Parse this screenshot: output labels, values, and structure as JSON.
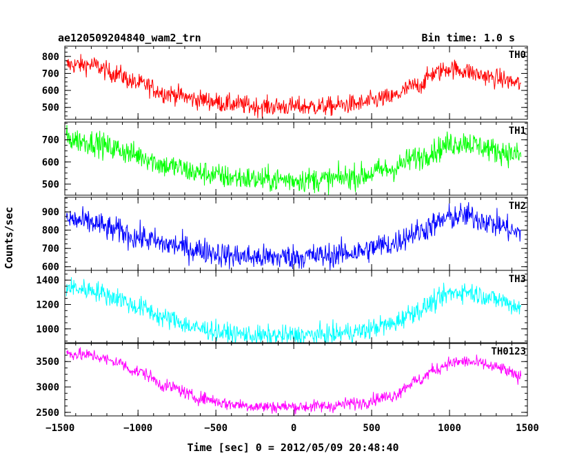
{
  "header": {
    "title": "ae120509204840_wam2_trn",
    "bin_time": "Bin time: 1.0 s"
  },
  "chart_data": {
    "type": "line",
    "xlabel": "Time [sec] 0 = 2012/05/09 20:48:40",
    "ylabel": "Counts/sec",
    "xlim": [
      -1470,
      1500
    ],
    "xticks": [
      -1500,
      -1000,
      -500,
      0,
      500,
      1000,
      1500
    ],
    "xtick_labels": [
      "−1500",
      "−1000",
      "−500",
      "0",
      "500",
      "1000",
      "1500"
    ],
    "x_data_range": [
      -1460,
      1460
    ],
    "grid": false,
    "panels": [
      {
        "name": "TH0",
        "color": "#ff0000",
        "ylim": [
          430,
          860
        ],
        "yticks": [
          500,
          600,
          700,
          800
        ],
        "x": [
          -1460,
          -1300,
          -1150,
          -1000,
          -800,
          -600,
          -400,
          -200,
          0,
          200,
          400,
          600,
          800,
          900,
          1000,
          1100,
          1200,
          1300,
          1460
        ],
        "values": [
          750,
          750,
          700,
          640,
          580,
          545,
          520,
          505,
          505,
          505,
          520,
          555,
          630,
          700,
          730,
          715,
          690,
          670,
          640
        ],
        "noise": 40
      },
      {
        "name": "TH1",
        "color": "#00ff00",
        "ylim": [
          450,
          780
        ],
        "yticks": [
          500,
          600,
          700
        ],
        "x": [
          -1460,
          -1300,
          -1150,
          -1000,
          -800,
          -600,
          -400,
          -200,
          0,
          200,
          400,
          600,
          800,
          900,
          1000,
          1100,
          1200,
          1300,
          1460
        ],
        "values": [
          705,
          690,
          660,
          630,
          580,
          550,
          530,
          520,
          520,
          520,
          535,
          565,
          620,
          650,
          680,
          690,
          670,
          650,
          630
        ],
        "noise": 40
      },
      {
        "name": "TH2",
        "color": "#0000ff",
        "ylim": [
          580,
          980
        ],
        "yticks": [
          600,
          700,
          800,
          900
        ],
        "x": [
          -1460,
          -1300,
          -1150,
          -1000,
          -800,
          -600,
          -400,
          -200,
          0,
          200,
          400,
          600,
          800,
          900,
          1000,
          1100,
          1200,
          1300,
          1460
        ],
        "values": [
          860,
          840,
          800,
          760,
          720,
          690,
          660,
          650,
          655,
          660,
          680,
          720,
          790,
          830,
          870,
          880,
          860,
          830,
          780
        ],
        "noise": 50
      },
      {
        "name": "TH3",
        "color": "#00ffff",
        "ylim": [
          880,
          1480
        ],
        "yticks": [
          1000,
          1200,
          1400
        ],
        "x": [
          -1460,
          -1300,
          -1150,
          -1000,
          -800,
          -600,
          -400,
          -200,
          0,
          200,
          400,
          600,
          800,
          900,
          1000,
          1100,
          1200,
          1300,
          1460
        ],
        "values": [
          1340,
          1320,
          1260,
          1180,
          1080,
          1000,
          960,
          940,
          945,
          950,
          975,
          1030,
          1150,
          1220,
          1290,
          1310,
          1280,
          1240,
          1180
        ],
        "noise": 60
      },
      {
        "name": "TH0123",
        "color": "#ff00ff",
        "ylim": [
          2430,
          3870
        ],
        "yticks": [
          2500,
          3000,
          3500
        ],
        "x": [
          -1460,
          -1300,
          -1150,
          -1000,
          -800,
          -600,
          -400,
          -200,
          0,
          200,
          400,
          600,
          800,
          900,
          1000,
          1100,
          1200,
          1300,
          1460
        ],
        "values": [
          3660,
          3620,
          3500,
          3300,
          3000,
          2780,
          2660,
          2610,
          2610,
          2620,
          2680,
          2800,
          3120,
          3330,
          3470,
          3500,
          3460,
          3380,
          3200
        ],
        "noise": 90
      }
    ]
  }
}
